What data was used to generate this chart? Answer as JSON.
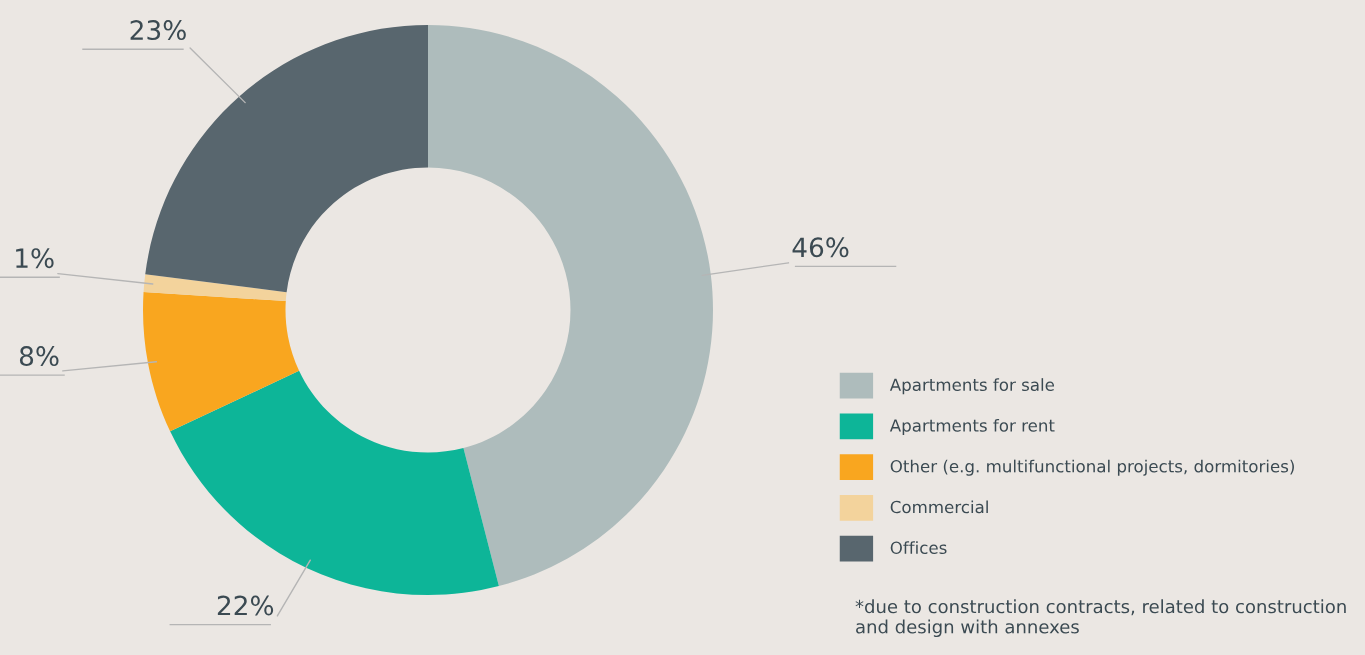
{
  "chart_data": {
    "type": "donut",
    "categories": [
      "Apartments for sale",
      "Apartments for rent",
      "Other (e.g. multifunctional projects, dormitories)",
      "Commercial",
      "Offices"
    ],
    "values": [
      46,
      22,
      8,
      1,
      23
    ],
    "value_labels": [
      "46%",
      "22%",
      "8%",
      "1%",
      "23%"
    ],
    "colors": [
      "#aebcbc",
      "#0db598",
      "#f9a61f",
      "#f3d39c",
      "#58666e"
    ],
    "legend": "bottom right",
    "annotations": [
      "*due to construction contracts, related to construction and design with annexes"
    ]
  }
}
